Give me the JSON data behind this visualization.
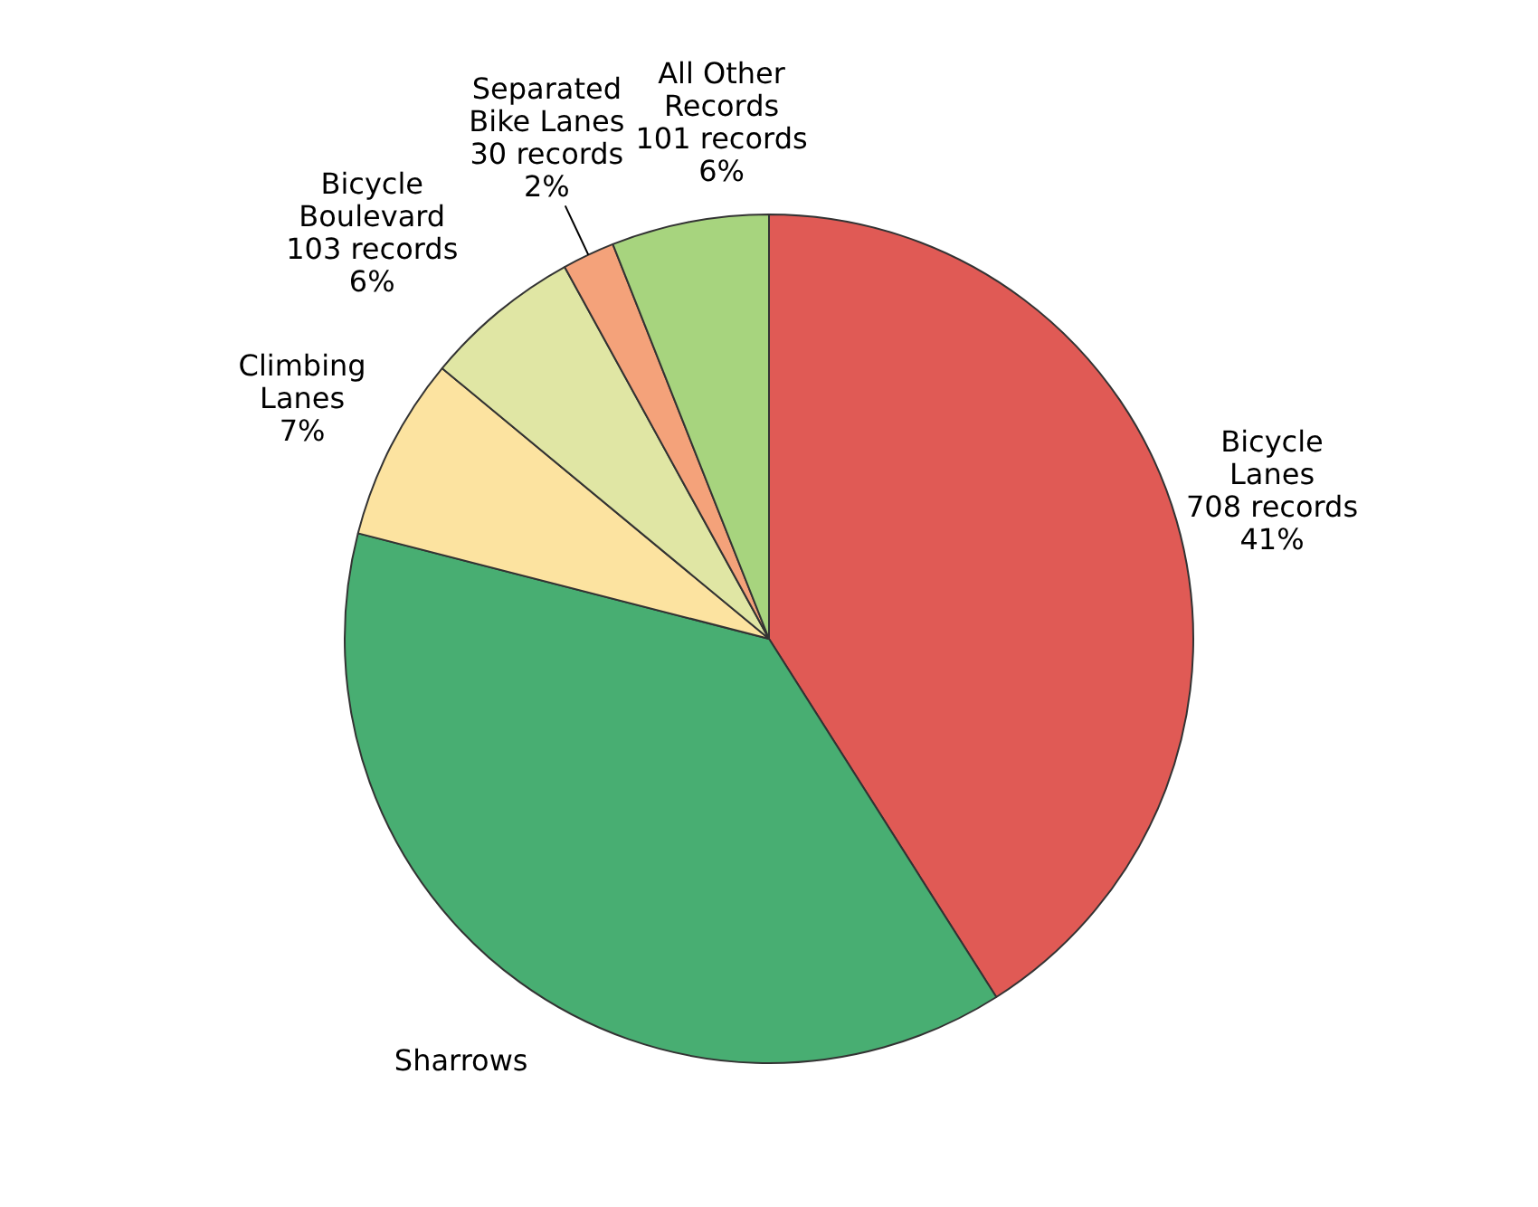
{
  "chart_data": {
    "type": "pie",
    "categories": [
      "Bicycle Lanes",
      "Sharrows",
      "Climbing Lanes",
      "Bicycle Boulevard",
      "Separated Bike Lanes",
      "All Other Records"
    ],
    "values": [
      41,
      38,
      7,
      6,
      2,
      6
    ],
    "colors": [
      "#e05a55",
      "#48ae72",
      "#fce3a0",
      "#e0e6a4",
      "#f4a27a",
      "#a7d47e"
    ],
    "value_labels": [
      "708 records\n41%",
      null,
      "7%",
      "103 records\n6%",
      "30 records\n2%",
      "101 records\n6%"
    ],
    "legend": false
  }
}
